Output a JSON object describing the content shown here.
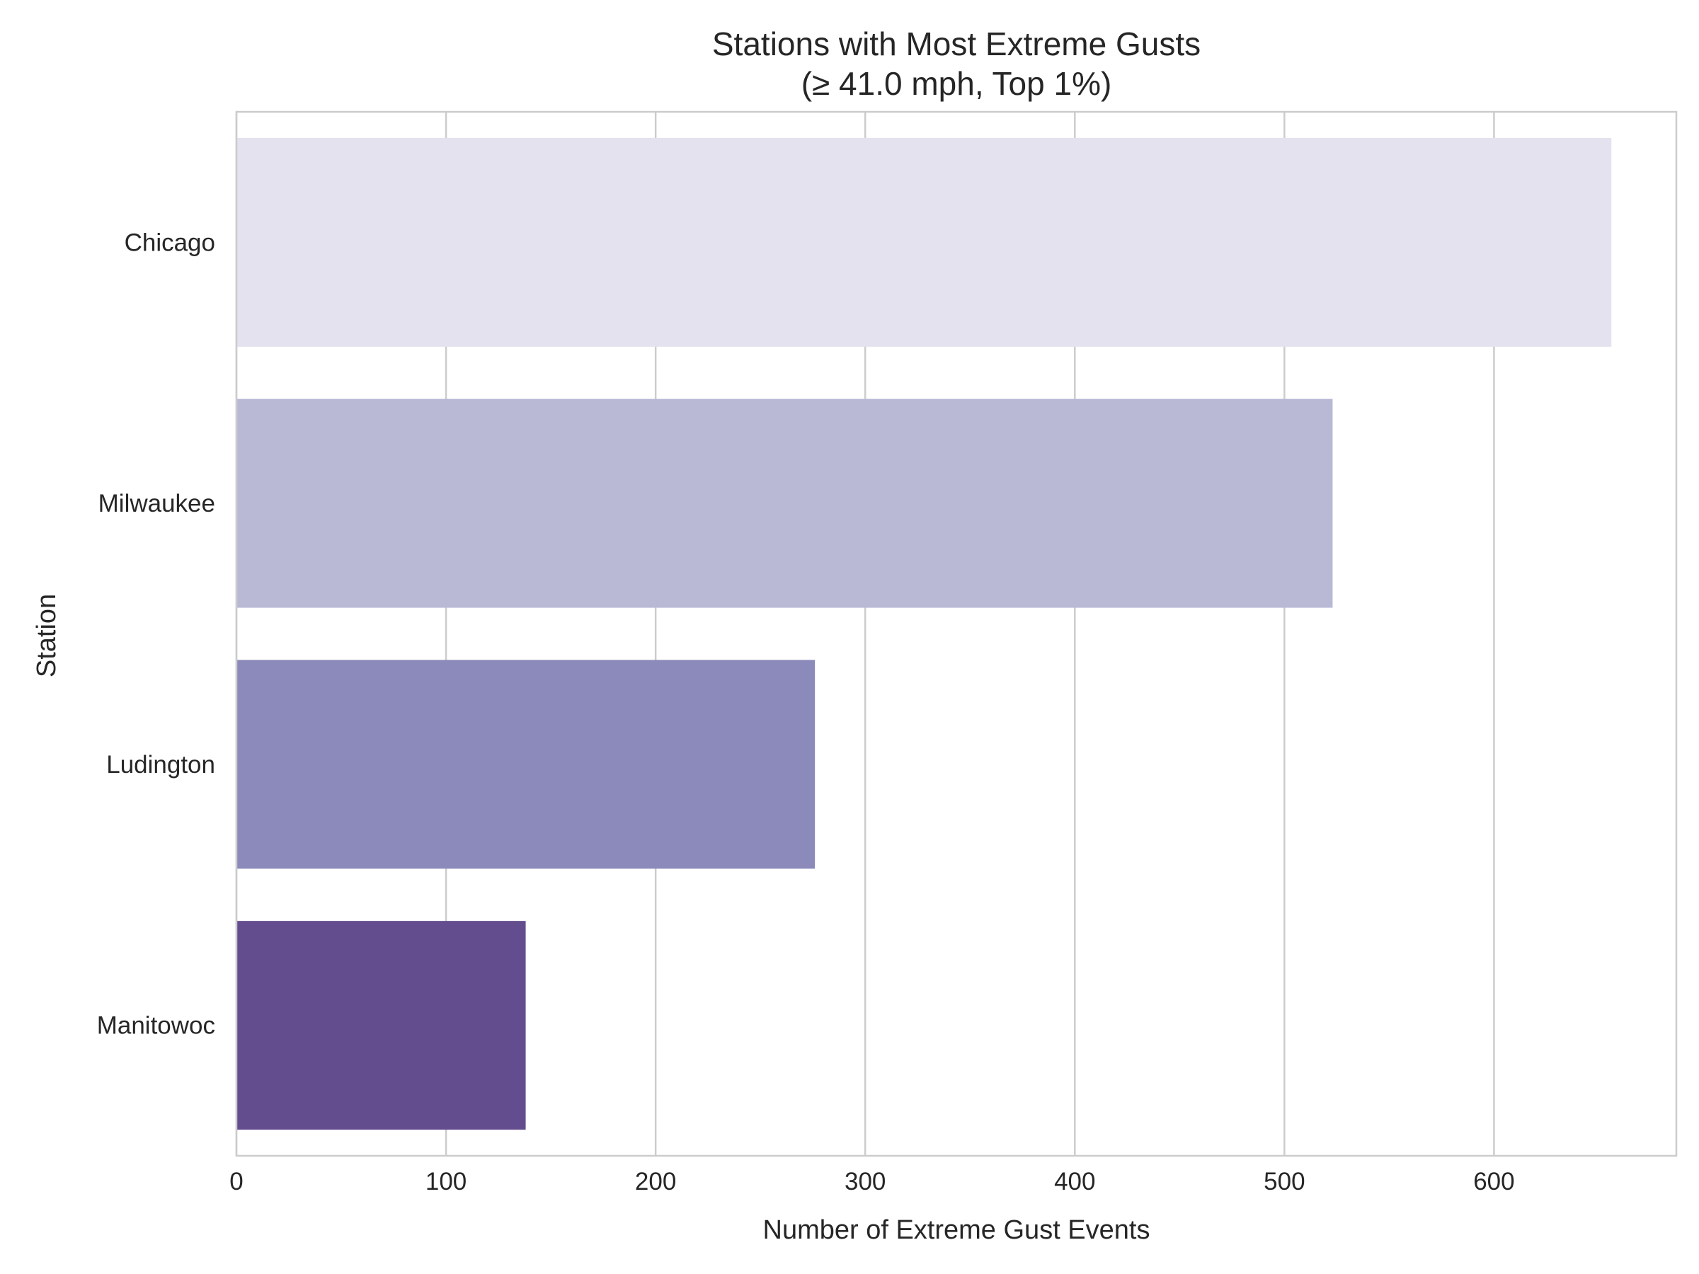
{
  "chart_data": {
    "type": "bar",
    "orientation": "horizontal",
    "title_line1": "Stations with Most Extreme Gusts",
    "title_line2": "(≥ 41.0 mph, Top 1%)",
    "xlabel": "Number of Extreme Gust Events",
    "ylabel": "Station",
    "categories": [
      "Chicago",
      "Milwaukee",
      "Ludington",
      "Manitowoc"
    ],
    "values": [
      656,
      523,
      276,
      138
    ],
    "colors": [
      "#e3e2ee",
      "#b9b9d6",
      "#8c8aba",
      "#644d8f"
    ],
    "xlim": [
      0,
      687
    ],
    "xticks": [
      0,
      100,
      200,
      300,
      400,
      500,
      600
    ],
    "grid": true,
    "legend": "none"
  }
}
